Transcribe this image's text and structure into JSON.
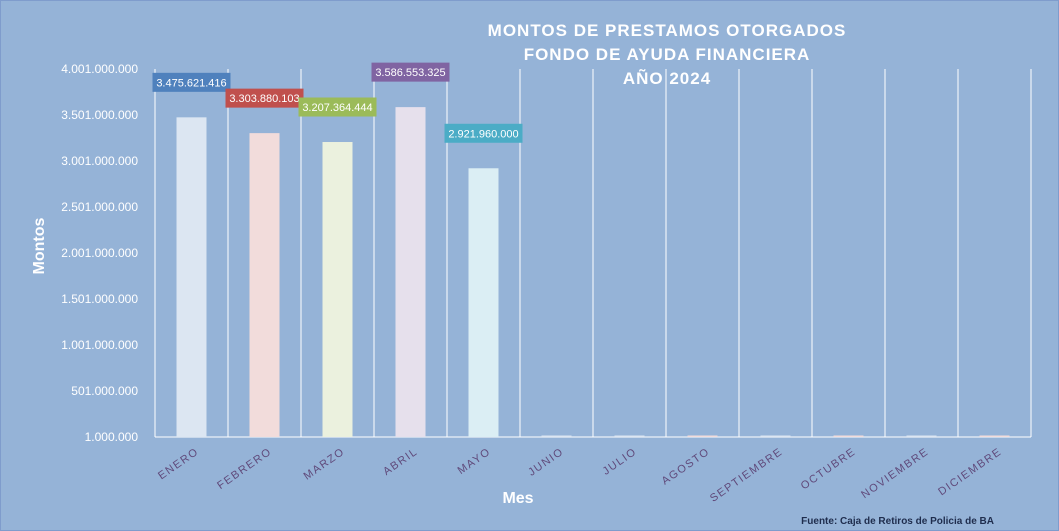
{
  "chart_data": {
    "type": "bar",
    "title_lines": [
      "MONTOS  DE  PRESTAMOS  OTORGADOS",
      "FONDO DE AYUDA FINANCIERA",
      "AÑO  2024"
    ],
    "xlabel": "Mes",
    "ylabel": "Montos",
    "source": "Fuente: Caja de Retiros de Policia de BA",
    "categories": [
      "ENERO",
      "FEBRERO",
      "MARZO",
      "ABRIL",
      "MAYO",
      "JUNIO",
      "JULIO",
      "AGOSTO",
      "SEPTIEMBRE",
      "OCTUBRE",
      "NOVIEMBRE",
      "DICIEMBRE"
    ],
    "values": [
      3475621416,
      3303880103,
      3207364444,
      3586553325,
      2921960000,
      0,
      0,
      0,
      0,
      0,
      0,
      0
    ],
    "data_labels": [
      "3.475.621.416",
      "3.303.880.103",
      "3.207.364.444",
      "3.586.553.325",
      "2.921.960.000",
      "",
      "",
      "",
      "",
      "",
      "",
      ""
    ],
    "ylim": [
      1000000,
      4001000000
    ],
    "yticks": [
      1000000,
      501000000,
      1001000000,
      1501000000,
      2001000000,
      2501000000,
      3001000000,
      3501000000,
      4001000000
    ],
    "ytick_labels": [
      "1.000.000",
      "501.000.000",
      "1.001.000.000",
      "1.501.000.000",
      "2.001.000.000",
      "2.501.000.000",
      "3.001.000.000",
      "3.501.000.000",
      "4.001.000.000"
    ],
    "grid": "vertical",
    "colors": {
      "background": "#95b3d7",
      "bars": [
        "#dce6f2",
        "#f2dcdb",
        "#ebf1de",
        "#e6e0ec",
        "#dbeef4",
        "#dce6f2",
        "#dce6f2",
        "#f2dcdb",
        "#dce6f2",
        "#f2dcdb",
        "#dce6f2",
        "#f2dcdb"
      ],
      "labels": [
        "#4f81bd",
        "#c0504d",
        "#9bbb59",
        "#8064a2",
        "#4bacc6",
        "#4f81bd",
        "#4f81bd",
        "#c0504d",
        "#4f81bd",
        "#c0504d",
        "#4f81bd",
        "#c0504d"
      ],
      "category_text": "#604a7b",
      "title": "#ffffff",
      "source_text": "#1f2d4d"
    }
  }
}
